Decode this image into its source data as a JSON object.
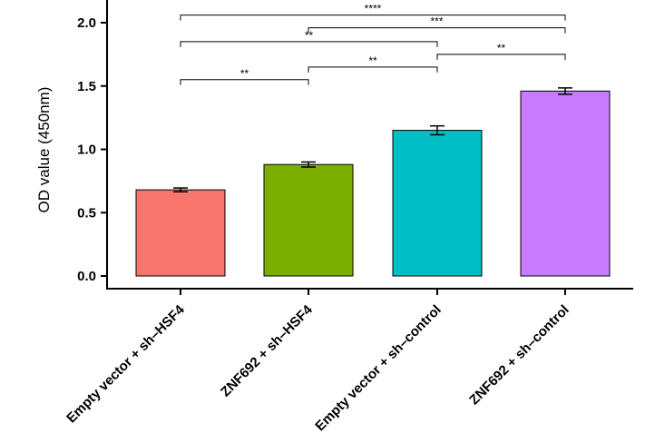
{
  "chart_data": {
    "type": "bar",
    "ylabel": "OD value (450nm)",
    "xlabel": "",
    "title": "",
    "ylim": [
      0,
      2.0
    ],
    "yticks": [
      "0.0",
      "0.5",
      "1.0",
      "1.5",
      "2.0"
    ],
    "categories": [
      "Empty vector + sh–HSF4",
      "ZNF692 + sh–HSF4",
      "Empty vector + sh–control",
      "ZNF692 + sh–control"
    ],
    "values": [
      0.68,
      0.88,
      1.15,
      1.46
    ],
    "errors": [
      0.015,
      0.02,
      0.035,
      0.025
    ],
    "colors": [
      "#f8766d",
      "#7cae00",
      "#00bfc4",
      "#c77cff"
    ],
    "grid": false,
    "legend": "none",
    "significance": [
      {
        "from": 0,
        "to": 1,
        "y": 1.55,
        "label": "**"
      },
      {
        "from": 1,
        "to": 2,
        "y": 1.65,
        "label": "**"
      },
      {
        "from": 2,
        "to": 3,
        "y": 1.75,
        "label": "**"
      },
      {
        "from": 0,
        "to": 2,
        "y": 1.85,
        "label": "**"
      },
      {
        "from": 1,
        "to": 3,
        "y": 1.96,
        "label": "***"
      },
      {
        "from": 0,
        "to": 3,
        "y": 2.06,
        "label": "****"
      }
    ]
  }
}
